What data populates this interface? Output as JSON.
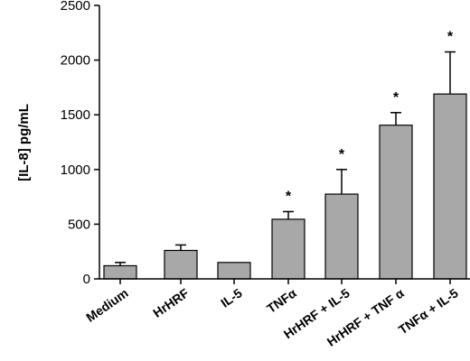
{
  "chart_data": {
    "type": "bar",
    "ylabel": "[IL-8]  pg/mL",
    "ylim": [
      0,
      2500
    ],
    "yticks": [
      0,
      500,
      1000,
      1500,
      2000,
      2500
    ],
    "categories": [
      "Medium",
      "HrHRF",
      "IL-5",
      "TNFα",
      "HrHRF + IL-5",
      "HrHRF + TNF α",
      "TNFα + IL-5"
    ],
    "values": [
      120,
      260,
      150,
      545,
      775,
      1405,
      1690
    ],
    "errors": [
      30,
      50,
      0,
      70,
      225,
      115,
      385
    ],
    "significance": [
      "",
      "",
      "",
      "*",
      "*",
      "*",
      "*"
    ],
    "bar_color": "#a8a8a8",
    "grid": false
  }
}
